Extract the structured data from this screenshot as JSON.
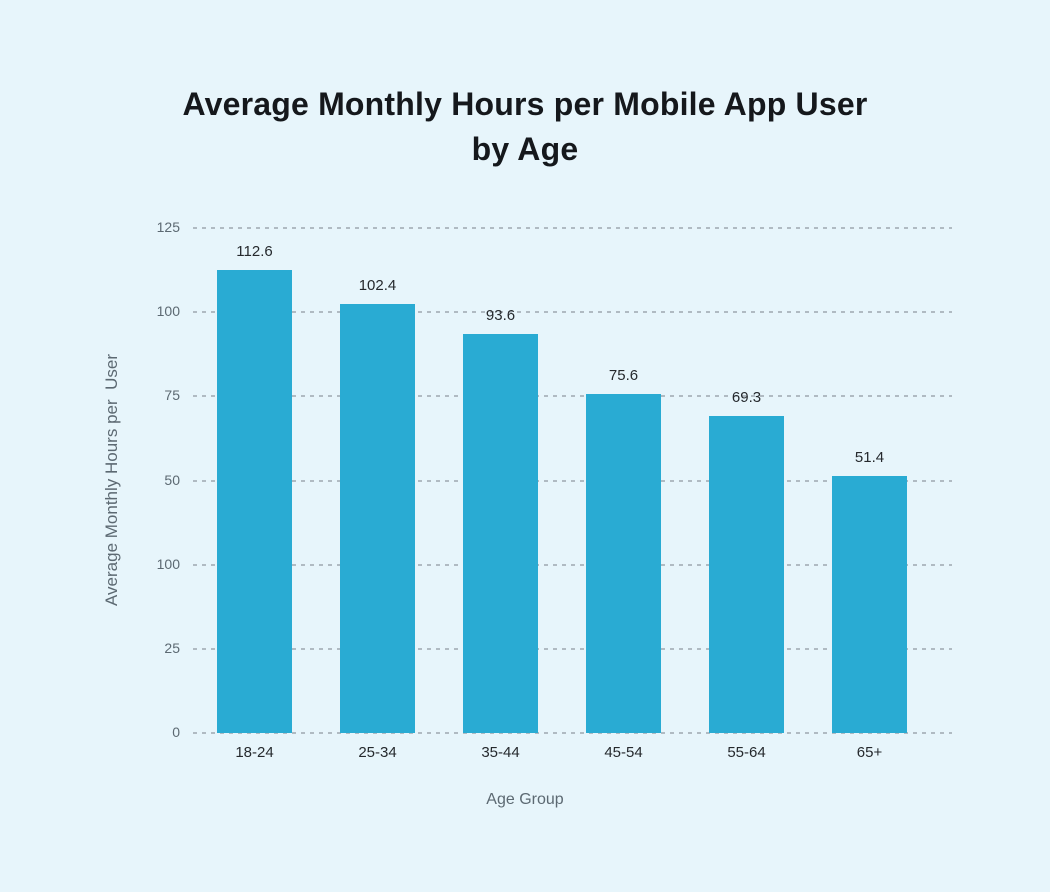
{
  "chart_data": {
    "type": "bar",
    "title": "Average Monthly Hours per Mobile App User by Age",
    "title_lines": [
      "Average Monthly Hours per Mobile App User",
      "by Age"
    ],
    "xlabel": "Age Group",
    "ylabel": "Average Monthly Hours per  User",
    "categories": [
      "18-24",
      "25-34",
      "35-44",
      "45-54",
      "55-64",
      "65+"
    ],
    "values": [
      112.6,
      102.4,
      93.6,
      75.6,
      69.3,
      51.4
    ],
    "value_labels": [
      "112.6",
      "102.4",
      "93.6",
      "75.6",
      "69.3",
      "51.4"
    ],
    "ylim": [
      0,
      125
    ],
    "grid": "horizontal-dashed",
    "legend": "none",
    "bar_color": "#29ABD3",
    "y_axis": {
      "tick_labels_top_to_bottom": [
        "125",
        "100",
        "75",
        "50",
        "100",
        "25",
        "0"
      ],
      "slot_count": 6,
      "value_slot_anchors": [
        [
          0,
          0
        ],
        [
          25,
          1
        ],
        [
          50,
          3
        ],
        [
          75,
          4
        ],
        [
          100,
          5
        ],
        [
          125,
          6
        ]
      ]
    }
  },
  "colors": {
    "background": "#E7F5FB",
    "bar": "#29ABD3",
    "title_text": "#15181C",
    "dark_label_text": "#25292D",
    "gray_label_text": "#5C6972",
    "gridline": "#A2ACB4"
  }
}
